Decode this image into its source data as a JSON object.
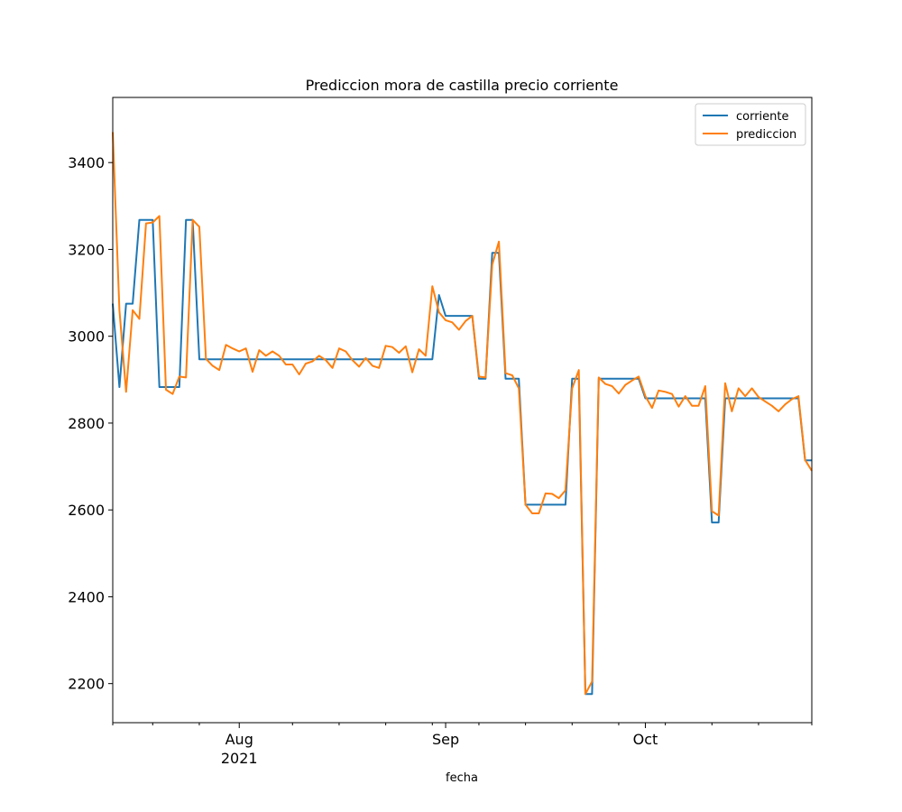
{
  "chart_data": {
    "type": "line",
    "title": "Prediccion mora de castilla precio corriente",
    "xlabel": "fecha",
    "ylabel": "",
    "xlim": [
      "2021-07-13",
      "2021-10-26"
    ],
    "ylim": [
      2110,
      3550
    ],
    "y_ticks": [
      2200,
      2400,
      2600,
      2800,
      3000,
      3200,
      3400
    ],
    "x_major_ticks": [
      {
        "date": "2021-08-01",
        "label": "Aug",
        "sublabel": "2021"
      },
      {
        "date": "2021-09-01",
        "label": "Sep",
        "sublabel": ""
      },
      {
        "date": "2021-10-01",
        "label": "Oct",
        "sublabel": ""
      }
    ],
    "x_minor_ticks": [
      "2021-07-13",
      "2021-07-19",
      "2021-07-26",
      "2021-08-09",
      "2021-08-16",
      "2021-08-23",
      "2021-08-30",
      "2021-09-06",
      "2021-09-13",
      "2021-09-20",
      "2021-09-27",
      "2021-10-04",
      "2021-10-11",
      "2021-10-18",
      "2021-10-26"
    ],
    "legend": {
      "position": "top-right"
    },
    "grid": false,
    "series": [
      {
        "name": "corriente",
        "color": "#1f77b4",
        "points": [
          [
            "2021-07-13",
            3075
          ],
          [
            "2021-07-14",
            2883
          ],
          [
            "2021-07-15",
            3075
          ],
          [
            "2021-07-16",
            3075
          ],
          [
            "2021-07-17",
            3268
          ],
          [
            "2021-07-19",
            3268
          ],
          [
            "2021-07-20",
            2883
          ],
          [
            "2021-07-23",
            2883
          ],
          [
            "2021-07-24",
            3268
          ],
          [
            "2021-07-25",
            3268
          ],
          [
            "2021-07-26",
            2947
          ],
          [
            "2021-08-30",
            2947
          ],
          [
            "2021-08-31",
            3095
          ],
          [
            "2021-09-01",
            3047
          ],
          [
            "2021-09-05",
            3047
          ],
          [
            "2021-09-06",
            2902
          ],
          [
            "2021-09-07",
            2902
          ],
          [
            "2021-09-08",
            3192
          ],
          [
            "2021-09-09",
            3192
          ],
          [
            "2021-09-10",
            2902
          ],
          [
            "2021-09-12",
            2902
          ],
          [
            "2021-09-13",
            2612
          ],
          [
            "2021-09-19",
            2612
          ],
          [
            "2021-09-20",
            2902
          ],
          [
            "2021-09-21",
            2902
          ],
          [
            "2021-09-22",
            2176
          ],
          [
            "2021-09-23",
            2176
          ],
          [
            "2021-09-24",
            2902
          ],
          [
            "2021-09-30",
            2902
          ],
          [
            "2021-10-01",
            2857
          ],
          [
            "2021-10-10",
            2857
          ],
          [
            "2021-10-11",
            2571
          ],
          [
            "2021-10-12",
            2571
          ],
          [
            "2021-10-13",
            2857
          ],
          [
            "2021-10-24",
            2857
          ],
          [
            "2021-10-25",
            2714
          ],
          [
            "2021-10-26",
            2714
          ]
        ]
      },
      {
        "name": "prediccion",
        "color": "#ff7f0e",
        "points": [
          [
            "2021-07-13",
            3470
          ],
          [
            "2021-07-14",
            3060
          ],
          [
            "2021-07-15",
            2872
          ],
          [
            "2021-07-16",
            3060
          ],
          [
            "2021-07-17",
            3040
          ],
          [
            "2021-07-18",
            3260
          ],
          [
            "2021-07-19",
            3262
          ],
          [
            "2021-07-20",
            3277
          ],
          [
            "2021-07-21",
            2877
          ],
          [
            "2021-07-22",
            2867
          ],
          [
            "2021-07-23",
            2907
          ],
          [
            "2021-07-24",
            2905
          ],
          [
            "2021-07-25",
            3268
          ],
          [
            "2021-07-26",
            3252
          ],
          [
            "2021-07-27",
            2948
          ],
          [
            "2021-07-28",
            2932
          ],
          [
            "2021-07-29",
            2922
          ],
          [
            "2021-07-30",
            2980
          ],
          [
            "2021-07-31",
            2972
          ],
          [
            "2021-08-01",
            2965
          ],
          [
            "2021-08-02",
            2972
          ],
          [
            "2021-08-03",
            2918
          ],
          [
            "2021-08-04",
            2968
          ],
          [
            "2021-08-05",
            2955
          ],
          [
            "2021-08-06",
            2965
          ],
          [
            "2021-08-07",
            2955
          ],
          [
            "2021-08-08",
            2935
          ],
          [
            "2021-08-09",
            2935
          ],
          [
            "2021-08-10",
            2912
          ],
          [
            "2021-08-11",
            2937
          ],
          [
            "2021-08-12",
            2942
          ],
          [
            "2021-08-13",
            2955
          ],
          [
            "2021-08-14",
            2945
          ],
          [
            "2021-08-15",
            2927
          ],
          [
            "2021-08-16",
            2972
          ],
          [
            "2021-08-17",
            2965
          ],
          [
            "2021-08-18",
            2945
          ],
          [
            "2021-08-19",
            2930
          ],
          [
            "2021-08-20",
            2950
          ],
          [
            "2021-08-21",
            2932
          ],
          [
            "2021-08-22",
            2927
          ],
          [
            "2021-08-23",
            2978
          ],
          [
            "2021-08-24",
            2975
          ],
          [
            "2021-08-25",
            2962
          ],
          [
            "2021-08-26",
            2977
          ],
          [
            "2021-08-27",
            2917
          ],
          [
            "2021-08-28",
            2970
          ],
          [
            "2021-08-29",
            2955
          ],
          [
            "2021-08-30",
            3115
          ],
          [
            "2021-08-31",
            3055
          ],
          [
            "2021-09-01",
            3037
          ],
          [
            "2021-09-02",
            3032
          ],
          [
            "2021-09-03",
            3015
          ],
          [
            "2021-09-04",
            3035
          ],
          [
            "2021-09-05",
            3047
          ],
          [
            "2021-09-06",
            2907
          ],
          [
            "2021-09-07",
            2905
          ],
          [
            "2021-09-08",
            3165
          ],
          [
            "2021-09-09",
            3218
          ],
          [
            "2021-09-10",
            2915
          ],
          [
            "2021-09-11",
            2910
          ],
          [
            "2021-09-12",
            2880
          ],
          [
            "2021-09-13",
            2612
          ],
          [
            "2021-09-14",
            2592
          ],
          [
            "2021-09-15",
            2592
          ],
          [
            "2021-09-16",
            2638
          ],
          [
            "2021-09-17",
            2637
          ],
          [
            "2021-09-18",
            2627
          ],
          [
            "2021-09-19",
            2645
          ],
          [
            "2021-09-20",
            2880
          ],
          [
            "2021-09-21",
            2922
          ],
          [
            "2021-09-22",
            2176
          ],
          [
            "2021-09-23",
            2205
          ],
          [
            "2021-09-24",
            2905
          ],
          [
            "2021-09-25",
            2890
          ],
          [
            "2021-09-26",
            2885
          ],
          [
            "2021-09-27",
            2868
          ],
          [
            "2021-09-28",
            2888
          ],
          [
            "2021-09-29",
            2898
          ],
          [
            "2021-09-30",
            2907
          ],
          [
            "2021-10-01",
            2862
          ],
          [
            "2021-10-02",
            2835
          ],
          [
            "2021-10-03",
            2875
          ],
          [
            "2021-10-04",
            2872
          ],
          [
            "2021-10-05",
            2867
          ],
          [
            "2021-10-06",
            2838
          ],
          [
            "2021-10-07",
            2862
          ],
          [
            "2021-10-08",
            2840
          ],
          [
            "2021-10-09",
            2840
          ],
          [
            "2021-10-10",
            2885
          ],
          [
            "2021-10-11",
            2597
          ],
          [
            "2021-10-12",
            2587
          ],
          [
            "2021-10-13",
            2892
          ],
          [
            "2021-10-14",
            2827
          ],
          [
            "2021-10-15",
            2880
          ],
          [
            "2021-10-16",
            2862
          ],
          [
            "2021-10-17",
            2880
          ],
          [
            "2021-10-18",
            2860
          ],
          [
            "2021-10-19",
            2850
          ],
          [
            "2021-10-20",
            2840
          ],
          [
            "2021-10-21",
            2827
          ],
          [
            "2021-10-22",
            2843
          ],
          [
            "2021-10-23",
            2855
          ],
          [
            "2021-10-24",
            2862
          ],
          [
            "2021-10-25",
            2715
          ],
          [
            "2021-10-26",
            2690
          ]
        ]
      }
    ]
  }
}
